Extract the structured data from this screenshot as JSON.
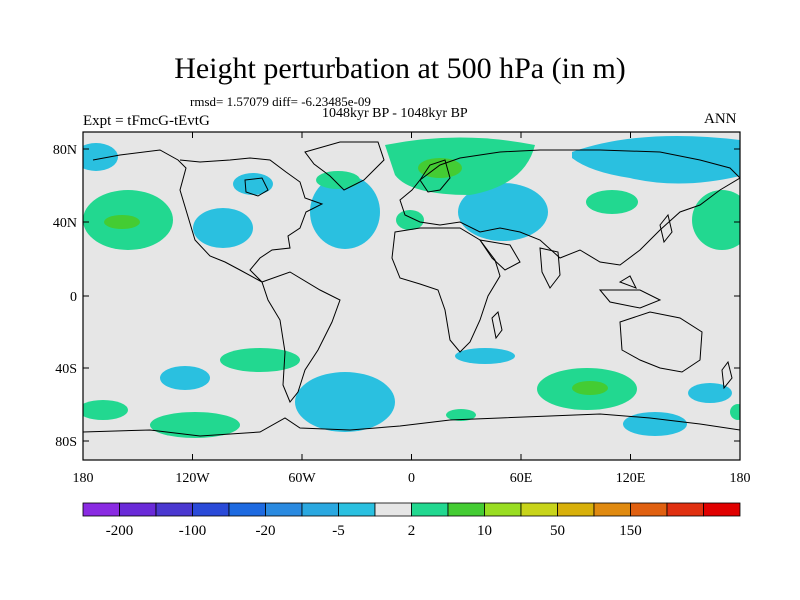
{
  "title": "Height perturbation at 500 hPa (in m)",
  "stats": "rmsd= 1.57079 diff= -6.23485e-09",
  "period": "1048kyr BP - 1048kyr BP",
  "experiment": "Expt = tFmcG-tEvtG",
  "season": "ANN",
  "map": {
    "background_color": "#e6e6e6",
    "lon_ticks": [
      "180",
      "120W",
      "60W",
      "0",
      "60E",
      "120E",
      "180"
    ],
    "lat_ticks": [
      "80N",
      "40N",
      "0",
      "40S",
      "80S"
    ]
  },
  "colorbar": {
    "colors": [
      "#8a2be2",
      "#6a2ad8",
      "#4a38d0",
      "#2a4ad8",
      "#1e6ae0",
      "#2a8ae0",
      "#2aa8e0",
      "#2ac0e0",
      "#e6e6e6",
      "#22d890",
      "#44cc33",
      "#99dd22",
      "#c8d41a",
      "#d8b00a",
      "#e08a10",
      "#e06010",
      "#e03010",
      "#e00000"
    ],
    "labels": [
      "-200",
      "-100",
      "-20",
      "-5",
      "2",
      "10",
      "50",
      "150"
    ]
  },
  "legend_colors": {
    "negative": "#2ac0e0",
    "positive": "#22d890",
    "positive_strong": "#44cc33"
  }
}
